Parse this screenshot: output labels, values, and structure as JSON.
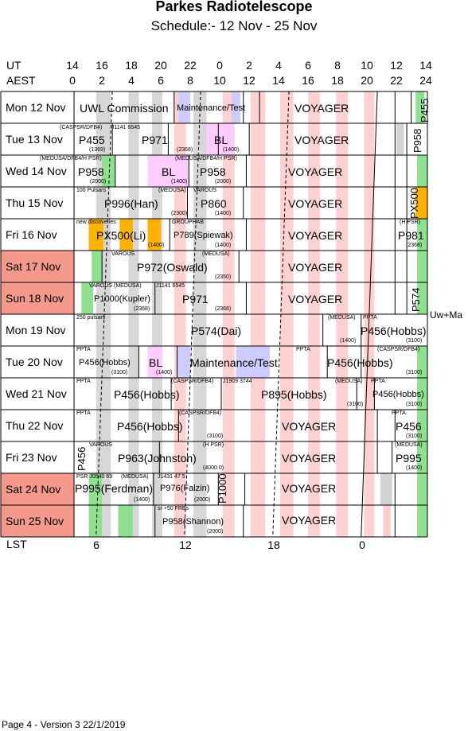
{
  "header": {
    "title": "Parkes Radiotelescope",
    "subtitle": "Schedule:- 12 Nov - 25 Nov",
    "ut_label": "UT",
    "aest_label": "AEST",
    "lst_label": "LST",
    "ut_ticks": [
      "14",
      "16",
      "18",
      "20",
      "22",
      "0",
      "2",
      "4",
      "6",
      "8",
      "10",
      "12",
      "14"
    ],
    "aest_ticks": [
      "0",
      "2",
      "4",
      "6",
      "8",
      "10",
      "12",
      "14",
      "16",
      "18",
      "20",
      "22",
      "24"
    ],
    "lst_ticks": [
      "6",
      "12",
      "18",
      "0"
    ]
  },
  "days": [
    {
      "label": "Mon  12 Nov",
      "weekend": false
    },
    {
      "label": "Tue   13 Nov",
      "weekend": false
    },
    {
      "label": "Wed  14 Nov",
      "weekend": false
    },
    {
      "label": "Thu   15 Nov",
      "weekend": false
    },
    {
      "label": "Fri    16 Nov",
      "weekend": false
    },
    {
      "label": "Sat   17 Nov",
      "weekend": true
    },
    {
      "label": "Sun  18 Nov",
      "weekend": true
    },
    {
      "label": "Mon  19 Nov",
      "weekend": false
    },
    {
      "label": "Tue   20 Nov",
      "weekend": false
    },
    {
      "label": "Wed  21 Nov",
      "weekend": false
    },
    {
      "label": "Thu   22 Nov",
      "weekend": false
    },
    {
      "label": "Fri    23 Nov",
      "weekend": false
    },
    {
      "label": "Sat   24 Nov",
      "weekend": true
    },
    {
      "label": "Sun  25 Nov",
      "weekend": true
    }
  ],
  "sessions": {
    "r0_a": "UWL Commission",
    "r0_b": "Maintenance/Test",
    "r0_c": "VOYAGER",
    "r0_d": "P455",
    "r1_a": "P455",
    "r1_b": "P971",
    "r1_c": "BL",
    "r1_d": "VOYAGER",
    "r1_e": "P958",
    "r1_s1": "(CASPSR/DFB4)",
    "r1_s2": "J1141 6545",
    "r1_s3": "(1369)",
    "r1_s4": "(2368)",
    "r1_s5": "(1400)",
    "r2_a": "P958",
    "r2_b": "BL",
    "r2_c": "P958",
    "r2_d": "VOYAGER",
    "r2_s1": "(MEDUSA/DFB4/H PSR)",
    "r2_s2": "(MEDUSA/DFB4/H PSR)",
    "r2_s3": "(2000)",
    "r2_s4": "(1400)",
    "r2_s5": "(2000)",
    "r3_a": "P996(Han)",
    "r3_b": "P860",
    "r3_c": "VOYAGER",
    "r3_d": "PX500",
    "r3_s1": "100 Pulsars",
    "r3_s2": "(MEDUSA)",
    "r3_s3": "VAROUS",
    "r3_s4": "(2300)",
    "r3_s5": "(1400)",
    "r4_a": "PX500(Li)",
    "r4_b": "P789(Spiewak)",
    "r4_c": "VOYAGER",
    "r4_d": "P981",
    "r4_s1": "new discoveries",
    "r4_s2": "GROUPHAB",
    "r4_s3": "(1400)",
    "r4_s4": "(1400)",
    "r4_s5": "(H PSR)",
    "r4_s6": "(2368)",
    "r5_a": "P972(Oswald)",
    "r5_b": "VOYAGER",
    "r5_s1": "VAROUS",
    "r5_s2": "(MEDUSA)",
    "r5_s3": "(2350)",
    "r6_a": "P1000(Kupler)",
    "r6_b": "P971",
    "r6_c": "VOYAGER",
    "r6_d": "P574",
    "r6_s1": "VAROUS (MEDUSA)",
    "r6_s2": "J1141 6545",
    "r6_s3": "(2368)",
    "r6_s4": "(2368)",
    "r7_a": "P574(Dai)",
    "r7_b": "P456(Hobbs)",
    "r7_s1": "250 pulsars",
    "r7_s2": "(MEDUSA)",
    "r7_s3": "PPTA",
    "r7_s4": "(1400)",
    "r7_s5": "(3100)",
    "r8_a": "P456(Hobbs)",
    "r8_b": "BL",
    "r8_c": "Maintenance/Test",
    "r8_d": "P456(Hobbs)",
    "r8_s1": "PPTA",
    "r8_s2": "PPTA",
    "r8_s3": "(CASPSR/DFB4)",
    "r8_s4": "(3100)",
    "r8_s5": "(1400)",
    "r8_s6": "(3100)",
    "r9_a": "P456(Hobbs)",
    "r9_b": "P895(Hobbs)",
    "r9_c": "P456(Hobbs)",
    "r9_s1": "PPTA",
    "r9_s2": "(CASPSR/DFB4)",
    "r9_s3": "J1909 3744",
    "r9_s4": "(MEDUSA)",
    "r9_s5": "PPTA",
    "r9_s6": "(3100)",
    "r9_s7": "(3100)",
    "r10_a": "P456(Hobbs)",
    "r10_b": "VOYAGER",
    "r10_c": "P456",
    "r10_s1": "PPTA",
    "r10_s2": "(CASPSR/DFB4)",
    "r10_s3": "PPTA",
    "r10_s4": "(3100)",
    "r10_s5": "(3100)",
    "r11_a": "P963(Johnston)",
    "r11_b": "VOYAGER",
    "r11_c": "P995",
    "r11_d": "P456",
    "r11_s1": "VAROUS",
    "r11_s2": "(H PSR)",
    "r11_s3": "(MEDUSA)",
    "r11_s4": "(4000 0)",
    "r11_s5": "(1400)",
    "r12_a": "P995(Ferdman)",
    "r12_b": "P976(Falzin)",
    "r12_c": "P1000",
    "r12_d": "VOYAGER",
    "r12_s1": "PSR J0540 69",
    "r12_s2": "(MEDUSA)",
    "r12_s3": "J1431  47 5",
    "r12_s4": "(1400)",
    "r12_s5": "(2000)",
    "r13_a": "P958(Shannon)",
    "r13_b": "VOYAGER",
    "r13_s1": "sr  +50  FRBs",
    "r13_s2": "(2000)"
  },
  "side_note": "Uw+Ma",
  "footer": "Page 4 - Version 3  22/1/2019",
  "colors": {
    "weekend": "#f5998c",
    "pink": "#ffcccc",
    "grey": "#d3d3d3",
    "green": "#8fe08f",
    "lavender": "#ccccff",
    "orange": "#ffb300",
    "magenta": "#ffccff"
  }
}
